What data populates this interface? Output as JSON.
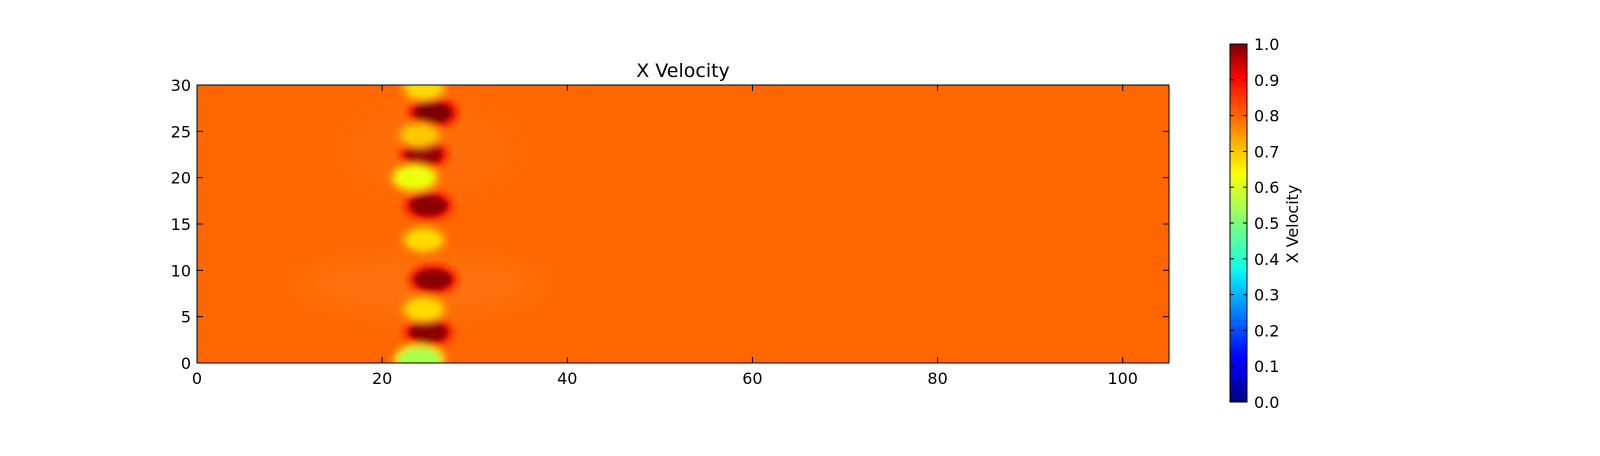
{
  "chart_data": {
    "type": "heatmap",
    "title": "X Velocity",
    "xlabel": "",
    "ylabel": "",
    "xlim": [
      0,
      105
    ],
    "ylim": [
      0,
      30
    ],
    "x_ticks": [
      0,
      20,
      40,
      60,
      80,
      100
    ],
    "y_ticks": [
      0,
      5,
      10,
      15,
      20,
      25,
      30
    ],
    "colormap": "jet",
    "background_value": 0.8,
    "colorbar": {
      "label": "X Velocity",
      "range": [
        0.0,
        1.0
      ],
      "ticks": [
        "0.0",
        "0.1",
        "0.2",
        "0.3",
        "0.4",
        "0.5",
        "0.6",
        "0.7",
        "0.8",
        "0.9",
        "1.0"
      ]
    },
    "features": [
      {
        "x": 25.5,
        "y": 27.0,
        "value": 1.0
      },
      {
        "x": 24.5,
        "y": 22.5,
        "value": 0.98
      },
      {
        "x": 25.0,
        "y": 17.0,
        "value": 0.99
      },
      {
        "x": 25.5,
        "y": 9.0,
        "value": 0.99
      },
      {
        "x": 25.0,
        "y": 3.3,
        "value": 0.99
      },
      {
        "x": 24.5,
        "y": 29.7,
        "value": 0.68
      },
      {
        "x": 24.0,
        "y": 24.6,
        "value": 0.7
      },
      {
        "x": 23.5,
        "y": 20.0,
        "value": 0.62
      },
      {
        "x": 24.5,
        "y": 13.3,
        "value": 0.68
      },
      {
        "x": 24.5,
        "y": 5.8,
        "value": 0.68
      },
      {
        "x": 24.0,
        "y": 0.4,
        "value": 0.55
      }
    ]
  }
}
